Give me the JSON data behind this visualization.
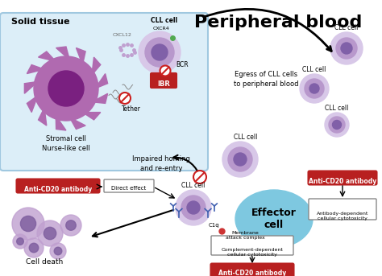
{
  "title": "Peripheral blood",
  "solid_tissue_label": "Solid tissue",
  "stromal_label": "Stromal cell\nNurse-like cell",
  "impaired_label": "Impaired homing\nand re-entry",
  "egress_label": "Egress of CLL cells\nto peripheral blood",
  "tether_label": "Tether",
  "cxcl12_label": "CXCL12",
  "cxcr4_label": "CXCR4",
  "bcr_label": "BCR",
  "ibr_label": "IBR",
  "cll_cell_label": "CLL cell",
  "effector_label": "Effector\ncell",
  "anti_cd20_label": "Anti-CD20 antibody",
  "direct_label": "Direct effect",
  "c1q_label": "C1q",
  "membrane_label": "Membrane\nattack complex",
  "complement_label": "Complement-dependent\ncellular cytotoxicity",
  "adcc_label": "Antibody-dependent\ncellular cytotoxicity",
  "cell_death_label": "Cell death",
  "bg_color": "#ffffff",
  "tissue_box_color": "#dceef8",
  "tissue_box_edge": "#a0c8e0",
  "stromal_cell_color": "#b06ab0",
  "stromal_inner_color": "#7a2080",
  "cll_outer_color": "#d8c8e8",
  "cll_mid_color": "#b898cc",
  "cll_nuc_color": "#8060a8",
  "effector_color": "#7ec8e0",
  "red_box_color": "#b82020",
  "no_symbol_color": "#cc2020",
  "arrow_color": "#111111",
  "gray_box_edge": "#888888",
  "antibody_color": "#4060b0",
  "c1q_color": "#cc3333",
  "cxcl12_dot_color": "#c0a0d0",
  "cxcr4_dot_color": "#50aa50",
  "dead_cell_outer": "#c0a0d0",
  "dead_cell_inner": "#8060a0"
}
